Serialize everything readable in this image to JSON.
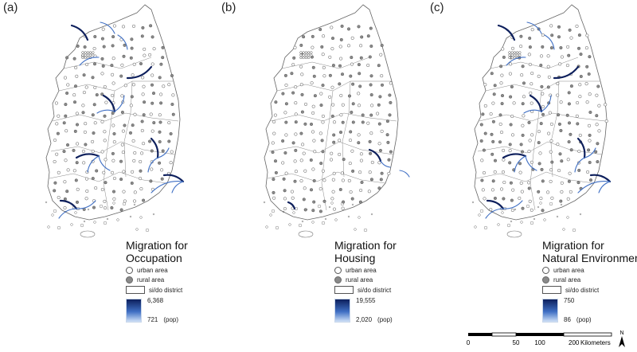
{
  "panels": [
    {
      "label": "(a)",
      "legend": {
        "title_line1": "Migration for",
        "title_line2": "Occupation",
        "urban": "urban area",
        "rural": "rural area",
        "district": "si/do district",
        "max": "6,368",
        "min": "721",
        "unit": "(pop)"
      },
      "flow_intensity": "high"
    },
    {
      "label": "(b)",
      "legend": {
        "title_line1": "Migration for",
        "title_line2": "Housing",
        "urban": "urban area",
        "rural": "rural area",
        "district": "si/do district",
        "max": "19,555",
        "min": "2,020",
        "unit": "(pop)"
      },
      "flow_intensity": "low"
    },
    {
      "label": "(c)",
      "legend": {
        "title_line1": "Migration for",
        "title_line2": "Natural Environment",
        "urban": "urban area",
        "rural": "rural area",
        "district": "si/do district",
        "max": "750",
        "min": "86",
        "unit": "(pop)"
      },
      "flow_intensity": "high"
    }
  ],
  "scalebar": {
    "ticks": [
      "0",
      "50",
      "100",
      "200"
    ],
    "unit": "Kilometers"
  },
  "north_arrow": {
    "label": "N"
  },
  "colors": {
    "flow_dark": "#0d1f5c",
    "flow_light": "#a9c4ee",
    "outline": "#555555",
    "rural_fill": "#8a8a8a"
  }
}
